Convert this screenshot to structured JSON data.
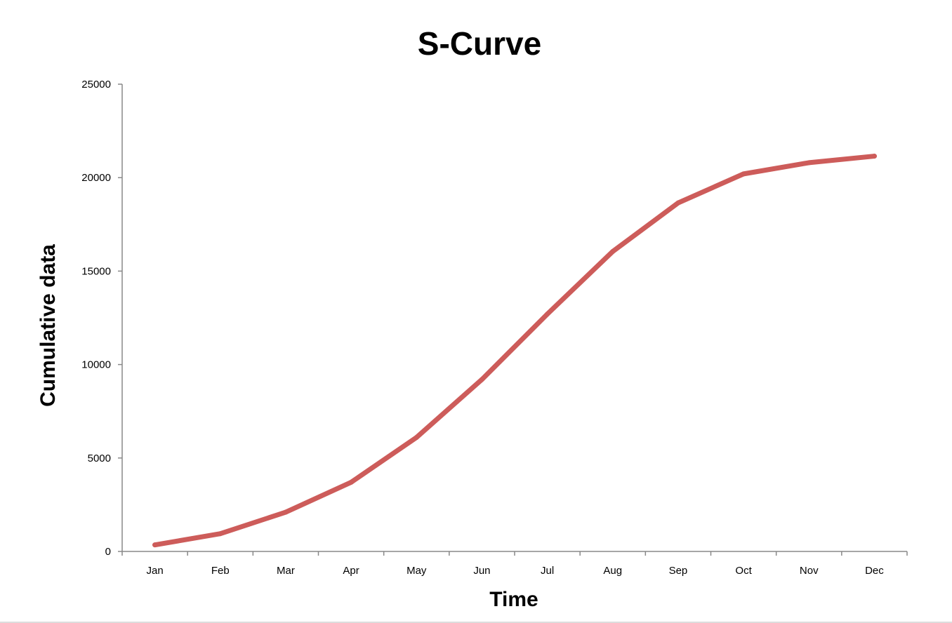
{
  "chart_data": {
    "type": "line",
    "title": "S-Curve",
    "xlabel": "Time",
    "ylabel": "Cumulative data",
    "categories": [
      "Jan",
      "Feb",
      "Mar",
      "Apr",
      "May",
      "Jun",
      "Jul",
      "Aug",
      "Sep",
      "Oct",
      "Nov",
      "Dec"
    ],
    "series": [
      {
        "values": [
          350,
          950,
          2100,
          3700,
          6100,
          9200,
          12700,
          16050,
          18650,
          20200,
          20800,
          21150
        ],
        "color": "#cd5c5a"
      }
    ],
    "ylim": [
      0,
      25000
    ],
    "yticks": [
      0,
      5000,
      10000,
      15000,
      20000,
      25000
    ],
    "grid": false,
    "legend": "none"
  }
}
